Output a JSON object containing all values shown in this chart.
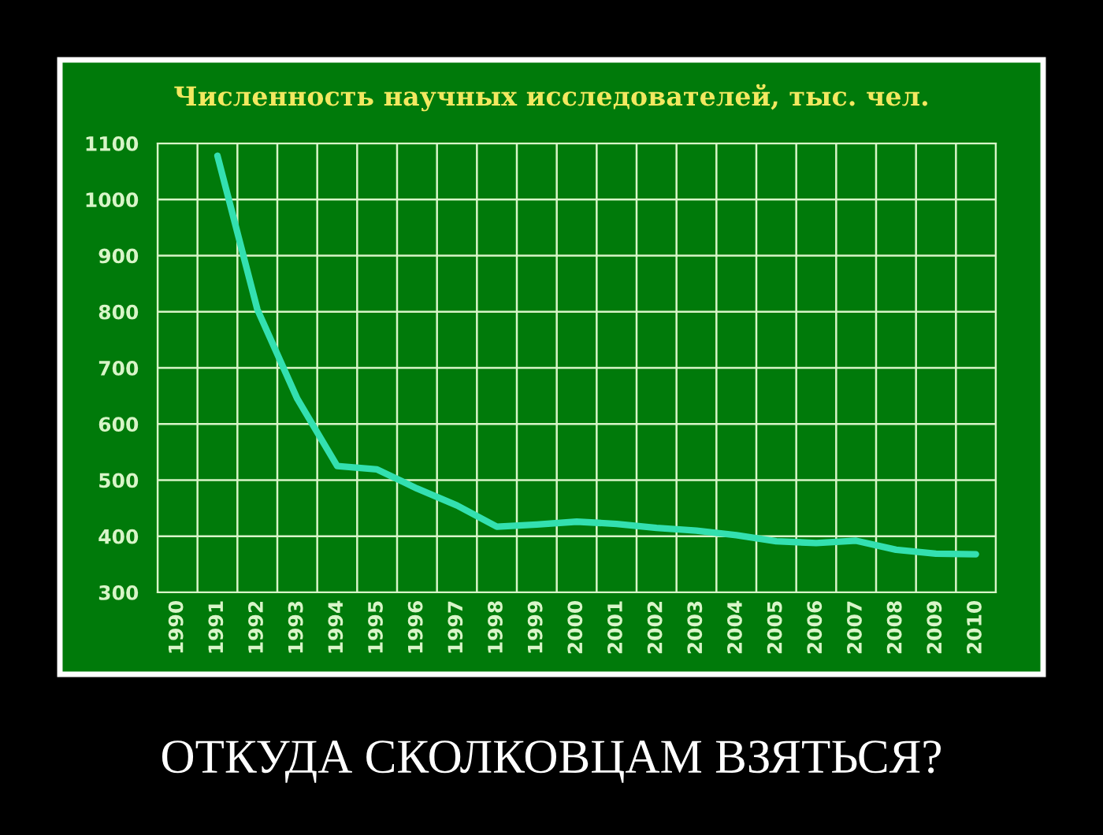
{
  "chart_data": {
    "type": "line",
    "title": "Численность научных исследователей, тыс. чел.",
    "categories": [
      "1990",
      "1991",
      "1992",
      "1993",
      "1994",
      "1995",
      "1996",
      "1997",
      "1998",
      "1999",
      "2000",
      "2001",
      "2002",
      "2003",
      "2004",
      "2005",
      "2006",
      "2007",
      "2008",
      "2009",
      "2010"
    ],
    "series": [
      {
        "color": "#33e0b0",
        "values": [
          null,
          1078,
          804,
          645,
          525,
          519,
          485,
          455,
          417,
          421,
          426,
          422,
          415,
          410,
          402,
          391,
          388,
          392,
          376,
          369,
          368
        ]
      }
    ],
    "ylim": [
      300,
      1100
    ],
    "yticks": [
      300,
      400,
      500,
      600,
      700,
      800,
      900,
      1000,
      1100
    ],
    "grid": true,
    "marker": "none",
    "line_style": "solid",
    "annotations": [
      "ОТКУДА СКОЛКОВЦАМ ВЗЯТЬСЯ?"
    ]
  }
}
